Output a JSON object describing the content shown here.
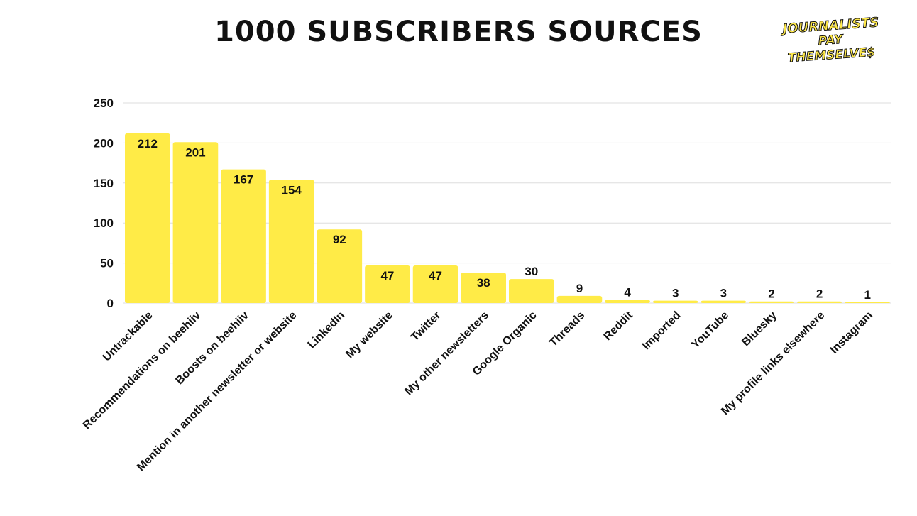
{
  "logo": {
    "line1": "JOURNALISTS",
    "line2": "PAY THEMSELVE$"
  },
  "chart_data": {
    "type": "bar",
    "title": "1000 SUBSCRIBERS SOURCES",
    "categories": [
      "Untrackable",
      "Recommendations on beehiiv",
      "Boosts on beehiiv",
      "Mention in another newsletter or website",
      "LinkedIn",
      "My website",
      "Twitter",
      "My other newsletters",
      "Google Organic",
      "Threads",
      "Reddit",
      "Imported",
      "YouTube",
      "Bluesky",
      "My profile links elsewhere",
      "Instagram"
    ],
    "values": [
      212,
      201,
      167,
      154,
      92,
      47,
      47,
      38,
      30,
      9,
      4,
      3,
      3,
      2,
      2,
      1
    ],
    "ylim": [
      0,
      250
    ],
    "yticks": [
      0,
      50,
      100,
      150,
      200,
      250
    ],
    "grid": true,
    "data_labels": true,
    "legend": "none",
    "bar_color": "#ffeb47",
    "gridline_color": "#dddddd",
    "text_color": "#111111"
  }
}
